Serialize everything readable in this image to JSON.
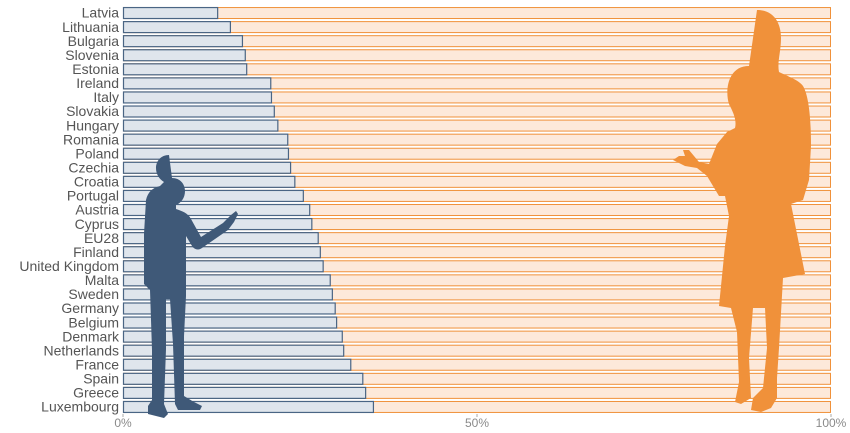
{
  "chart_data": {
    "type": "hbar",
    "categories": [
      "Latvia",
      "Lithuania",
      "Bulgaria",
      "Slovenia",
      "Estonia",
      "Ireland",
      "Italy",
      "Slovakia",
      "Hungary",
      "Romania",
      "Poland",
      "Czechia",
      "Croatia",
      "Portugal",
      "Austria",
      "Cyprus",
      "EU28",
      "Finland",
      "United Kingdom",
      "Malta",
      "Sweden",
      "Germany",
      "Belgium",
      "Denmark",
      "Netherlands",
      "France",
      "Spain",
      "Greece",
      "Luxembourg"
    ],
    "values": [
      13.3,
      15.1,
      16.8,
      17.2,
      17.4,
      20.8,
      20.9,
      21.3,
      21.8,
      23.2,
      23.3,
      23.6,
      24.2,
      25.4,
      26.3,
      26.6,
      27.5,
      27.8,
      28.2,
      29.2,
      29.5,
      29.9,
      30.1,
      30.9,
      31.1,
      32.1,
      33.8,
      34.2,
      35.3
    ],
    "color": "#dfe5ec",
    "track_color": "#fde9da",
    "xlim": [
      0,
      100
    ],
    "xticks": [
      {
        "value": 0,
        "label": "0%"
      },
      {
        "value": 50,
        "label": "50%"
      },
      {
        "value": 100,
        "label": "100%"
      }
    ]
  }
}
